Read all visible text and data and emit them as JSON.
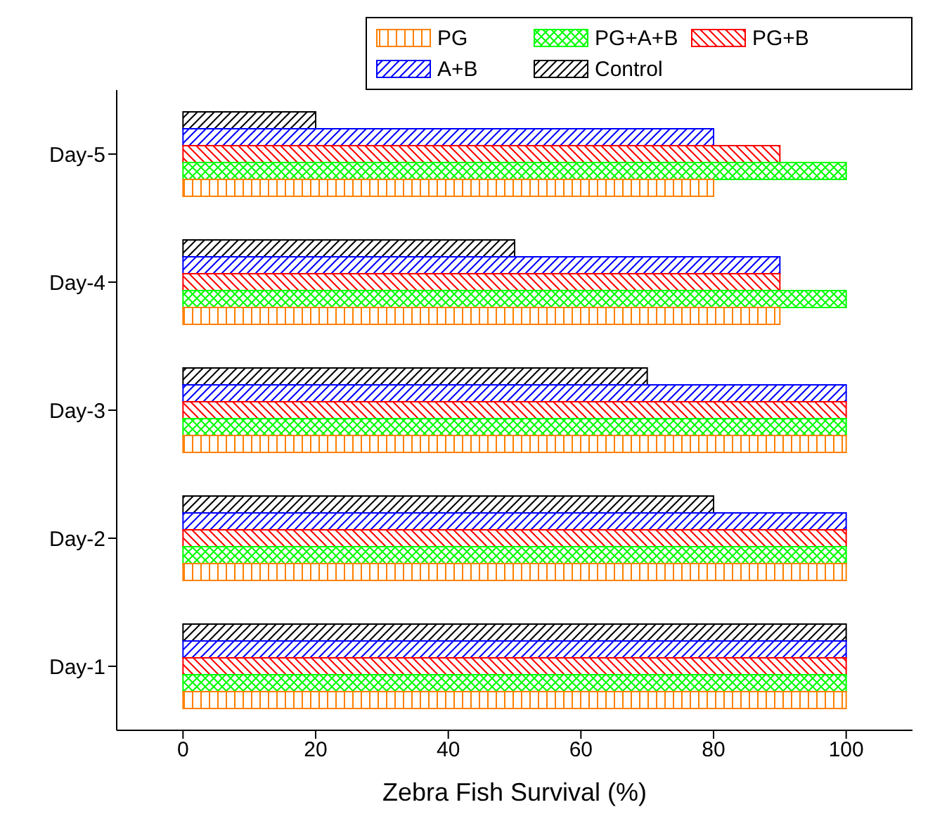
{
  "chart_data": {
    "type": "bar",
    "orientation": "horizontal",
    "xlabel": "Zebra Fish Survival (%)",
    "categories": [
      "Day-5",
      "Day-4",
      "Day-3",
      "Day-2",
      "Day-1"
    ],
    "series": [
      {
        "name": "PG",
        "color": "#ff8000",
        "values": [
          80,
          90,
          100,
          100,
          100
        ]
      },
      {
        "name": "PG+A+B",
        "color": "#00ff00",
        "values": [
          100,
          100,
          100,
          100,
          100
        ]
      },
      {
        "name": "PG+B",
        "color": "#ff0000",
        "values": [
          90,
          90,
          100,
          100,
          100
        ]
      },
      {
        "name": "A+B",
        "color": "#0000ff",
        "values": [
          80,
          90,
          100,
          100,
          100
        ]
      },
      {
        "name": "Control",
        "color": "#000000",
        "values": [
          20,
          50,
          70,
          80,
          100
        ]
      }
    ],
    "xlim": [
      -10,
      110
    ],
    "xticks": [
      0,
      20,
      40,
      60,
      80,
      100
    ],
    "legend": "top right"
  }
}
